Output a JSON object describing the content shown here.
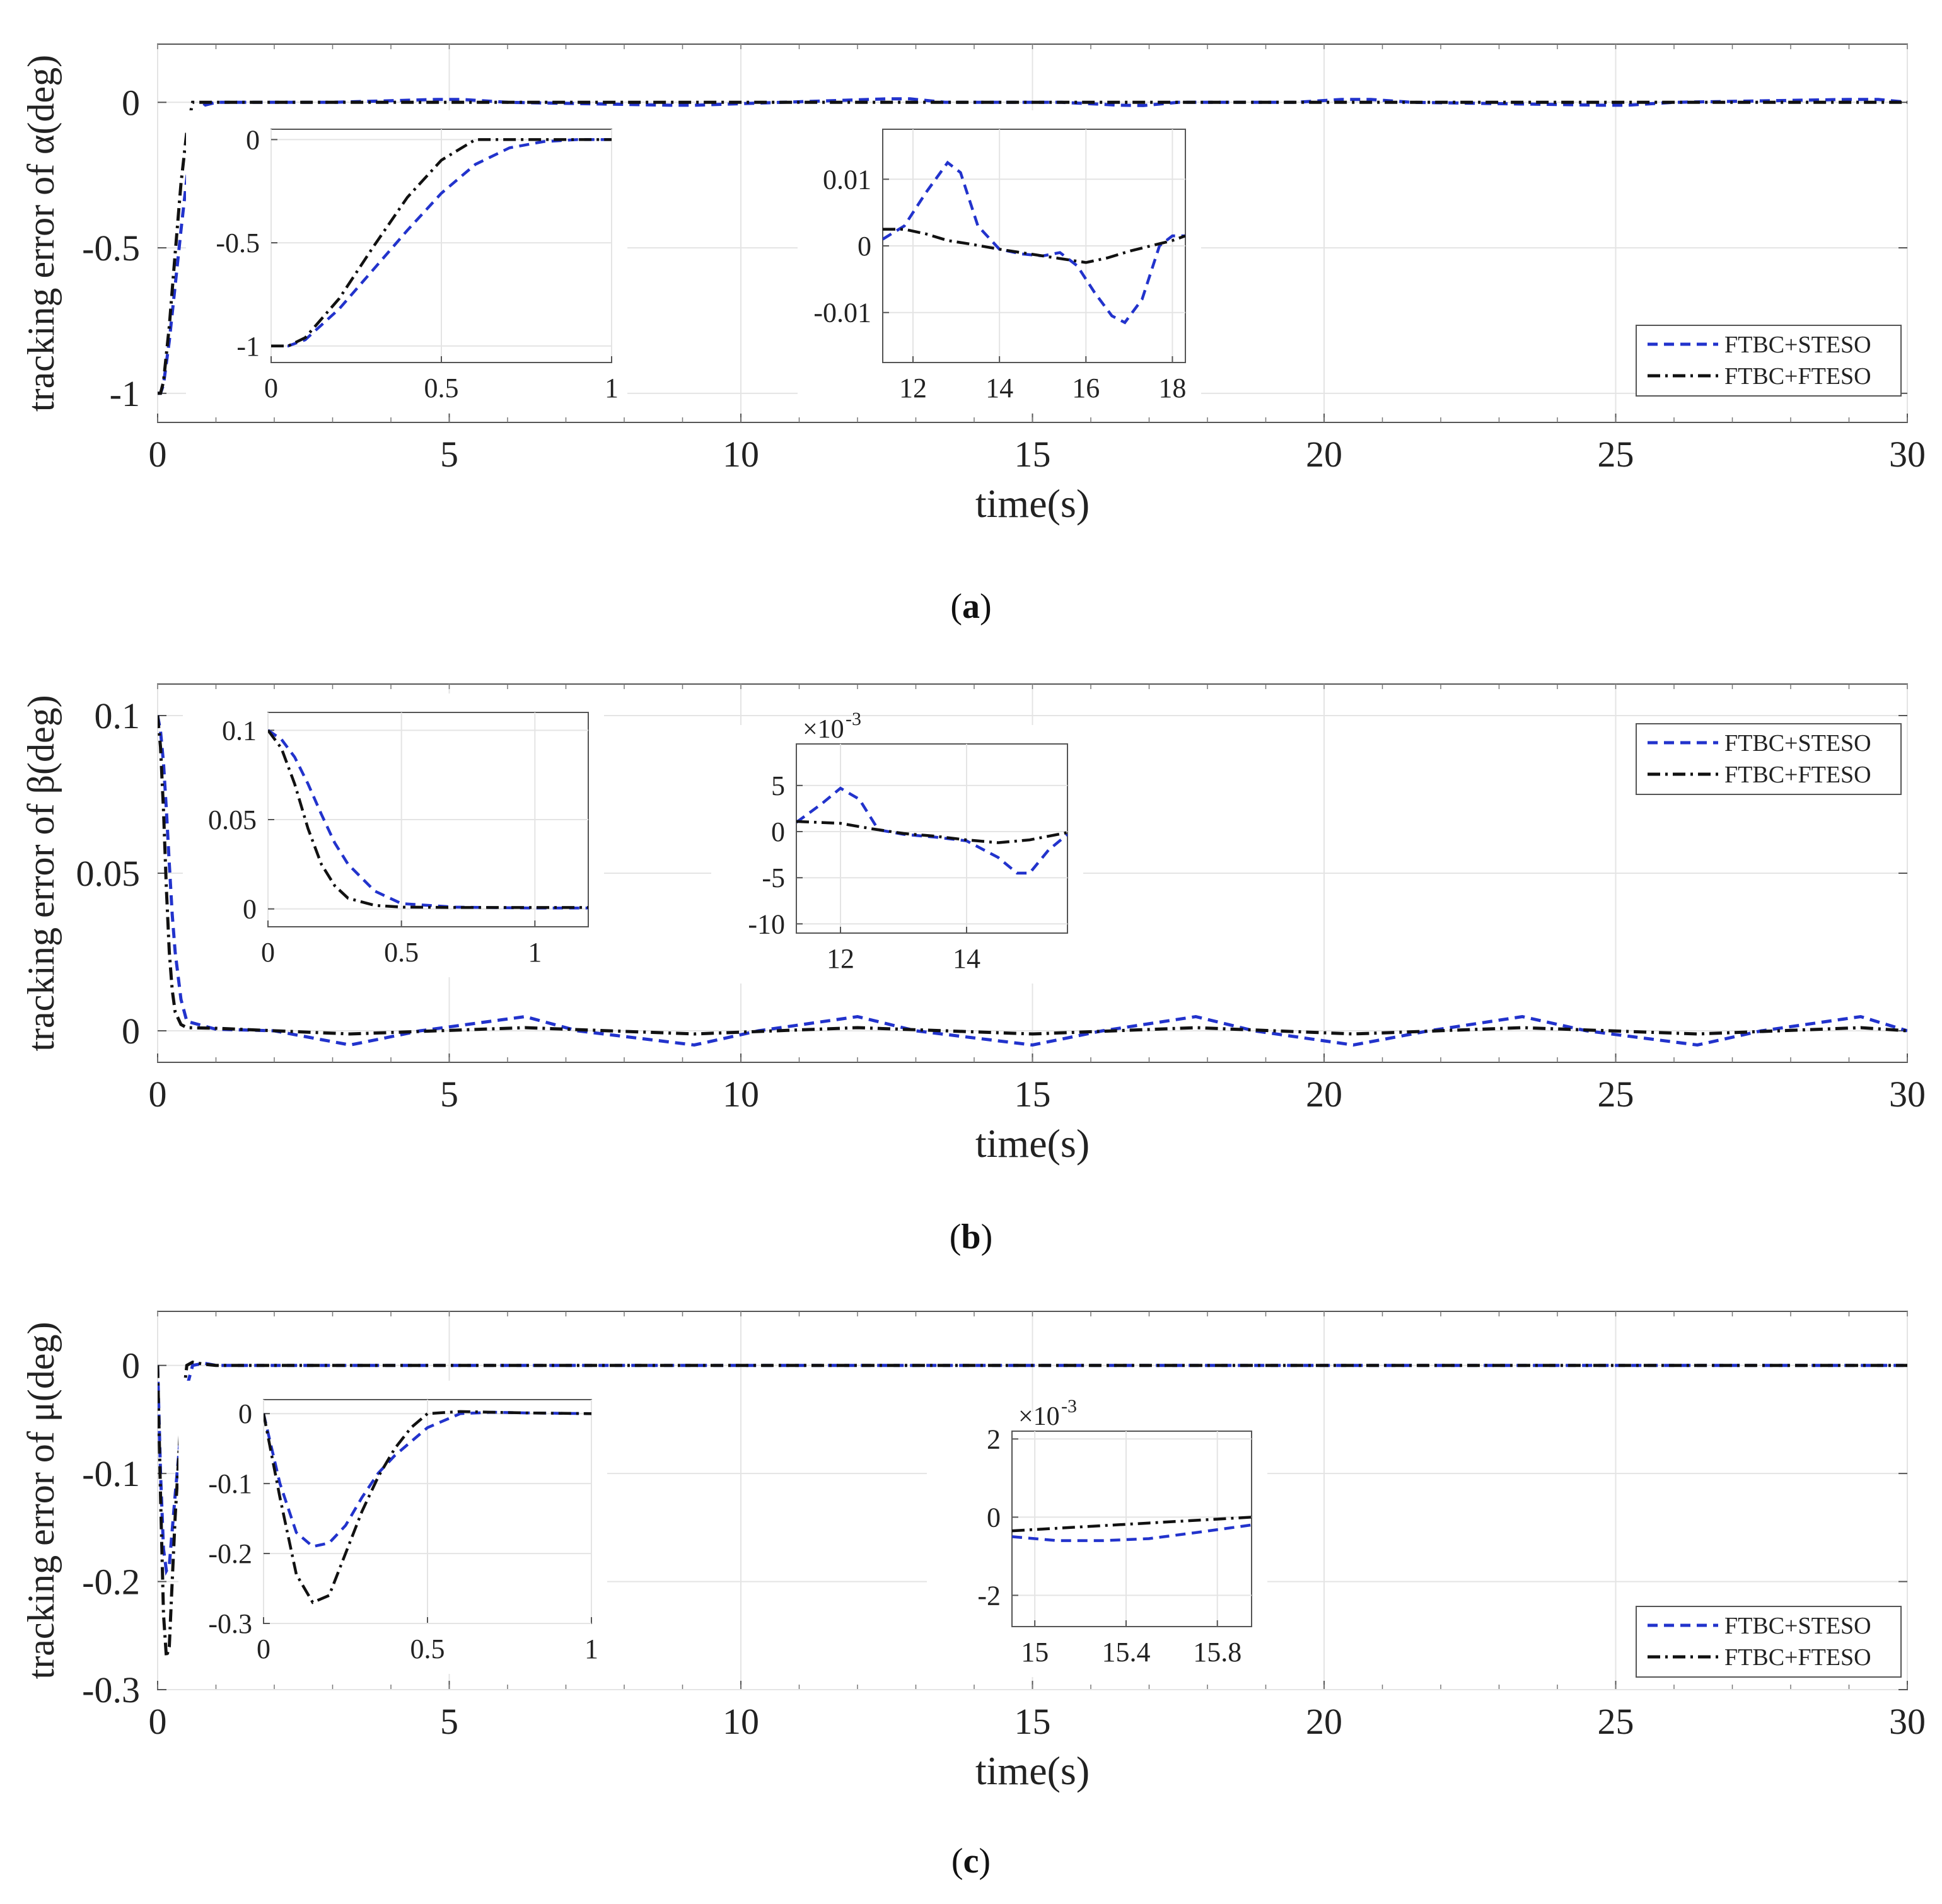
{
  "chart_data": [
    {
      "type": "line",
      "panel": "a",
      "caption_letter": "a",
      "xlabel": "time(s)",
      "ylabel": "tracking error of α(deg)",
      "xlim": [
        0,
        30
      ],
      "ylim": [
        -1.1,
        0.2
      ],
      "xticks": [
        0,
        5,
        10,
        15,
        20,
        25,
        30
      ],
      "yticks": [
        -1,
        -0.5,
        0
      ],
      "ytick_labels": [
        "-1",
        "-0.5",
        "0"
      ],
      "grid": true,
      "legend": {
        "position": "bottom-right",
        "entries": [
          "FTBC+STESO",
          "FTBC+FTESO"
        ]
      },
      "series": [
        {
          "name": "FTBC+STESO",
          "style": "dashed",
          "color": "#2233cc",
          "x": [
            0,
            0.05,
            0.1,
            0.2,
            0.3,
            0.4,
            0.5,
            0.6,
            0.7,
            0.8,
            1.0,
            3,
            4.8,
            5.2,
            6,
            8.8,
            9.2,
            12.5,
            12.9,
            13.5,
            15.5,
            16.5,
            16.9,
            17.5,
            19.5,
            20.3,
            20.8,
            21.5,
            24.8,
            25.2,
            26,
            29,
            29.5,
            30
          ],
          "y": [
            -1,
            -1.0,
            -0.97,
            -0.82,
            -0.63,
            -0.44,
            -0.26,
            -0.12,
            -0.04,
            -0.01,
            0,
            0,
            0.01,
            0.01,
            0,
            -0.01,
            -0.01,
            0.012,
            0.012,
            0,
            0,
            -0.01,
            -0.011,
            0,
            0,
            0.01,
            0.01,
            0,
            -0.01,
            -0.01,
            0,
            0.01,
            0.01,
            0
          ]
        },
        {
          "name": "FTBC+FTESO",
          "style": "dashdot",
          "color": "#111111",
          "x": [
            0,
            0.05,
            0.1,
            0.2,
            0.3,
            0.4,
            0.5,
            0.6,
            0.7,
            0.8,
            1.0,
            30
          ],
          "y": [
            -1,
            -1.0,
            -0.96,
            -0.77,
            -0.52,
            -0.28,
            -0.1,
            0,
            0,
            0,
            0,
            0
          ]
        }
      ],
      "insets": [
        {
          "xlim": [
            0,
            1
          ],
          "ylim": [
            -1.08,
            0.05
          ],
          "xticks": [
            0,
            0.5,
            1
          ],
          "xtick_labels": [
            "0",
            "0.5",
            "1"
          ],
          "yticks": [
            -1,
            -0.5,
            0
          ],
          "ytick_labels": [
            "-1",
            "-0.5",
            "0"
          ],
          "series": [
            {
              "name": "FTBC+STESO",
              "x": [
                0,
                0.05,
                0.1,
                0.2,
                0.3,
                0.4,
                0.5,
                0.6,
                0.7,
                0.8,
                0.9,
                1.0
              ],
              "y": [
                -1,
                -1.0,
                -0.97,
                -0.82,
                -0.63,
                -0.44,
                -0.26,
                -0.12,
                -0.04,
                -0.01,
                0,
                0
              ]
            },
            {
              "name": "FTBC+FTESO",
              "x": [
                0,
                0.05,
                0.1,
                0.2,
                0.3,
                0.4,
                0.5,
                0.6,
                0.7,
                0.8,
                0.9,
                1.0
              ],
              "y": [
                -1,
                -1.0,
                -0.96,
                -0.77,
                -0.52,
                -0.28,
                -0.1,
                0,
                0,
                0,
                0,
                0
              ]
            }
          ]
        },
        {
          "xlim": [
            11.3,
            18.3
          ],
          "ylim": [
            -0.0175,
            0.0175
          ],
          "xticks": [
            12,
            14,
            16,
            18
          ],
          "xtick_labels": [
            "12",
            "14",
            "16",
            "18"
          ],
          "yticks": [
            -0.01,
            0,
            0.01
          ],
          "ytick_labels": [
            "-0.01",
            "0",
            "0.01"
          ],
          "series": [
            {
              "name": "FTBC+STESO",
              "x": [
                11.3,
                11.8,
                12.3,
                12.8,
                13.1,
                13.5,
                14,
                14.5,
                15,
                15.4,
                15.8,
                16.2,
                16.6,
                16.9,
                17.3,
                17.7,
                18.0,
                18.3
              ],
              "y": [
                0.001,
                0.003,
                0.008,
                0.0125,
                0.011,
                0.003,
                -0.0005,
                -0.0012,
                -0.0015,
                -0.001,
                -0.003,
                -0.007,
                -0.0105,
                -0.0115,
                -0.008,
                0,
                0.0015,
                0.0015
              ]
            },
            {
              "name": "FTBC+FTESO",
              "x": [
                11.3,
                11.8,
                12.3,
                12.8,
                13.3,
                14,
                14.5,
                15,
                15.5,
                16,
                16.5,
                17,
                17.5,
                18,
                18.3
              ],
              "y": [
                0.0025,
                0.0025,
                0.0018,
                0.0008,
                0.0003,
                -0.0005,
                -0.001,
                -0.0015,
                -0.002,
                -0.0025,
                -0.0018,
                -0.0008,
                0,
                0.0008,
                0.0015
              ]
            }
          ]
        }
      ]
    },
    {
      "type": "line",
      "panel": "b",
      "caption_letter": "b",
      "xlabel": "time(s)",
      "ylabel": "tracking error of β(deg)",
      "xlim": [
        0,
        30
      ],
      "ylim": [
        -0.01,
        0.11
      ],
      "xticks": [
        0,
        5,
        10,
        15,
        20,
        25,
        30
      ],
      "yticks": [
        0,
        0.05,
        0.1
      ],
      "ytick_labels": [
        "0",
        "0.05",
        "0.1"
      ],
      "grid": true,
      "legend": {
        "position": "top-right",
        "entries": [
          "FTBC+STESO",
          "FTBC+FTESO"
        ]
      },
      "series": [
        {
          "name": "FTBC+STESO",
          "style": "dashed",
          "color": "#2233cc",
          "x": [
            0,
            0.05,
            0.1,
            0.15,
            0.2,
            0.25,
            0.3,
            0.4,
            0.5,
            1,
            2,
            3.3,
            4.5,
            6.3,
            7.2,
            9.2,
            10.3,
            12.0,
            13.0,
            15.0,
            16.2,
            17.8,
            18.8,
            20.5,
            21.8,
            23.4,
            24.5,
            26.4,
            27.5,
            29.2,
            30
          ],
          "y": [
            0.1,
            0.095,
            0.085,
            0.07,
            0.053,
            0.037,
            0.025,
            0.01,
            0.003,
            0.0005,
            0,
            -0.0045,
            0,
            0.0045,
            0,
            -0.0045,
            0,
            0.0045,
            0,
            -0.0045,
            0,
            0.0045,
            0,
            -0.0045,
            0,
            0.0045,
            0,
            -0.0045,
            0,
            0.0045,
            0
          ]
        },
        {
          "name": "FTBC+FTESO",
          "style": "dashdot",
          "color": "#111111",
          "x": [
            0,
            0.05,
            0.1,
            0.15,
            0.2,
            0.25,
            0.3,
            0.4,
            0.5,
            1,
            3.3,
            6.3,
            9.2,
            12.0,
            15.0,
            17.8,
            20.5,
            23.4,
            26.4,
            29.2,
            30
          ],
          "y": [
            0.1,
            0.09,
            0.07,
            0.045,
            0.025,
            0.013,
            0.006,
            0.002,
            0.001,
            0.0008,
            -0.001,
            0.001,
            -0.001,
            0.001,
            -0.001,
            0.001,
            -0.001,
            0.001,
            -0.001,
            0.001,
            0
          ]
        }
      ],
      "insets": [
        {
          "xlim": [
            0,
            1.2
          ],
          "ylim": [
            -0.01,
            0.11
          ],
          "xticks": [
            0,
            0.5,
            1
          ],
          "xtick_labels": [
            "0",
            "0.5",
            "1"
          ],
          "yticks": [
            0,
            0.05,
            0.1
          ],
          "ytick_labels": [
            "0",
            "0.05",
            "0.1"
          ],
          "series": [
            {
              "name": "FTBC+STESO",
              "x": [
                0,
                0.05,
                0.1,
                0.15,
                0.2,
                0.25,
                0.3,
                0.4,
                0.5,
                0.7,
                1.0,
                1.2
              ],
              "y": [
                0.1,
                0.095,
                0.085,
                0.07,
                0.053,
                0.037,
                0.025,
                0.01,
                0.003,
                0.001,
                0.0005,
                0.0005
              ]
            },
            {
              "name": "FTBC+FTESO",
              "x": [
                0,
                0.05,
                0.1,
                0.15,
                0.2,
                0.25,
                0.3,
                0.4,
                0.5,
                0.7,
                1.0,
                1.2
              ],
              "y": [
                0.1,
                0.09,
                0.07,
                0.045,
                0.025,
                0.013,
                0.006,
                0.002,
                0.001,
                0.0008,
                0.0008,
                0.0008
              ]
            }
          ]
        },
        {
          "xlim": [
            11.3,
            15.6
          ],
          "ylim": [
            -11,
            9.5
          ],
          "scale_label": "×10",
          "scale_exponent": "-3",
          "xticks": [
            12,
            14
          ],
          "xtick_labels": [
            "12",
            "14"
          ],
          "yticks": [
            -10,
            -5,
            0,
            5
          ],
          "ytick_labels": [
            "-10",
            "-5",
            "0",
            "5"
          ],
          "series": [
            {
              "name": "FTBC+STESO",
              "x": [
                11.3,
                11.7,
                12.0,
                12.3,
                12.6,
                13,
                13.5,
                14,
                14.5,
                14.8,
                15.0,
                15.3,
                15.6
              ],
              "y": [
                1,
                3,
                4.7,
                3.5,
                0.2,
                -0.3,
                -0.6,
                -1,
                -2.8,
                -4.5,
                -4.5,
                -2,
                -0.3
              ]
            },
            {
              "name": "FTBC+FTESO",
              "x": [
                11.3,
                12,
                12.5,
                13,
                13.5,
                14,
                14.5,
                15,
                15.3,
                15.6
              ],
              "y": [
                1.1,
                0.9,
                0.3,
                -0.2,
                -0.5,
                -0.9,
                -1.2,
                -0.9,
                -0.5,
                -0.1
              ]
            }
          ]
        }
      ]
    },
    {
      "type": "line",
      "panel": "c",
      "caption_letter": "c",
      "xlabel": "time(s)",
      "ylabel": "tracking error of μ(deg)",
      "xlim": [
        0,
        30
      ],
      "ylim": [
        -0.3,
        0.05
      ],
      "xticks": [
        0,
        5,
        10,
        15,
        20,
        25,
        30
      ],
      "yticks": [
        -0.3,
        -0.2,
        -0.1,
        0
      ],
      "ytick_labels": [
        "-0.3",
        "-0.2",
        "-0.1",
        "0"
      ],
      "grid": true,
      "legend": {
        "position": "bottom-right",
        "entries": [
          "FTBC+STESO",
          "FTBC+FTESO"
        ]
      },
      "series": [
        {
          "name": "FTBC+STESO",
          "style": "dashed",
          "color": "#2233cc",
          "x": [
            0,
            0.05,
            0.1,
            0.15,
            0.2,
            0.3,
            0.4,
            0.5,
            0.6,
            0.8,
            1.0,
            30
          ],
          "y": [
            0,
            -0.1,
            -0.17,
            -0.19,
            -0.185,
            -0.12,
            -0.06,
            -0.02,
            0,
            0.002,
            0,
            0
          ]
        },
        {
          "name": "FTBC+FTESO",
          "style": "dashdot",
          "color": "#111111",
          "x": [
            0,
            0.05,
            0.1,
            0.15,
            0.2,
            0.25,
            0.3,
            0.4,
            0.5,
            0.6,
            0.8,
            1.0,
            30
          ],
          "y": [
            0,
            -0.12,
            -0.23,
            -0.27,
            -0.26,
            -0.2,
            -0.14,
            -0.05,
            0,
            0.003,
            0.001,
            0,
            0
          ]
        }
      ],
      "insets": [
        {
          "xlim": [
            0,
            1
          ],
          "ylim": [
            -0.3,
            0.02
          ],
          "xticks": [
            0,
            0.5,
            1
          ],
          "xtick_labels": [
            "0",
            "0.5",
            "1"
          ],
          "yticks": [
            -0.3,
            -0.2,
            -0.1,
            0
          ],
          "ytick_labels": [
            "-0.3",
            "-0.2",
            "-0.1",
            "0"
          ],
          "series": [
            {
              "name": "FTBC+STESO",
              "x": [
                0,
                0.05,
                0.1,
                0.15,
                0.2,
                0.25,
                0.3,
                0.35,
                0.4,
                0.5,
                0.6,
                0.7,
                0.8,
                1.0
              ],
              "y": [
                0,
                -0.1,
                -0.17,
                -0.19,
                -0.185,
                -0.16,
                -0.12,
                -0.085,
                -0.06,
                -0.02,
                0,
                0.002,
                0.001,
                0
              ]
            },
            {
              "name": "FTBC+FTESO",
              "x": [
                0,
                0.05,
                0.1,
                0.15,
                0.2,
                0.25,
                0.3,
                0.35,
                0.4,
                0.45,
                0.5,
                0.6,
                0.8,
                1.0
              ],
              "y": [
                0,
                -0.12,
                -0.23,
                -0.27,
                -0.26,
                -0.2,
                -0.14,
                -0.09,
                -0.05,
                -0.02,
                0,
                0.003,
                0.001,
                0
              ]
            }
          ]
        },
        {
          "xlim": [
            14.9,
            15.95
          ],
          "ylim": [
            -2.8,
            2.2
          ],
          "scale_label": "×10",
          "scale_exponent": "-3",
          "xticks": [
            15,
            15.4,
            15.8
          ],
          "xtick_labels": [
            "15",
            "15.4",
            "15.8"
          ],
          "yticks": [
            -2,
            0,
            2
          ],
          "ytick_labels": [
            "-2",
            "0",
            "2"
          ],
          "series": [
            {
              "name": "FTBC+STESO",
              "x": [
                14.9,
                15.1,
                15.3,
                15.5,
                15.7,
                15.95
              ],
              "y": [
                -0.5,
                -0.6,
                -0.6,
                -0.55,
                -0.4,
                -0.2
              ]
            },
            {
              "name": "FTBC+FTESO",
              "x": [
                14.9,
                15.2,
                15.5,
                15.8,
                15.95
              ],
              "y": [
                -0.35,
                -0.25,
                -0.15,
                -0.05,
                0
              ]
            }
          ]
        }
      ]
    }
  ]
}
